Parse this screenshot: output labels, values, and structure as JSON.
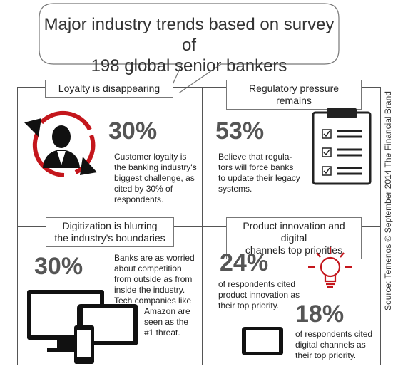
{
  "title_line1": "Major industry trends based on survey of",
  "title_line2": "198 global senior bankers",
  "source": "Source: Temenos © September 2014 The Financial Brand",
  "q1": {
    "label": "Loyalty is disappearing",
    "stat": "30%",
    "lines": [
      "Customer loyalty is",
      "the banking industry's",
      "biggest challenge, as",
      "cited by 30% of",
      "respondents."
    ]
  },
  "q2": {
    "label": "Regulatory pressure remains",
    "stat": "53%",
    "lines": [
      "Believe that regula-",
      "tors will force banks",
      "to update their legacy",
      "systems."
    ]
  },
  "q3": {
    "label_line1": "Digitization is blurring",
    "label_line2": "the industry's boundaries",
    "stat": "30%",
    "lines": [
      "Banks are as worried",
      "about competition",
      "from outside as from",
      "inside the industry.",
      "Tech companies like",
      "Amazon are",
      "seen as the",
      "#1 threat."
    ]
  },
  "q4": {
    "label_line1": "Product innovation and digital",
    "label_line2": "channels top priorities",
    "stat1": "24%",
    "lines1": [
      "of respondents cited",
      "product innovation as",
      "their top priority."
    ],
    "stat2": "18%",
    "lines2": [
      "of respondents cited",
      "digital channels as",
      "their top priority."
    ]
  },
  "colors": {
    "accent_red": "#c4161c",
    "dark": "#222222",
    "stat_gray": "#555555"
  }
}
